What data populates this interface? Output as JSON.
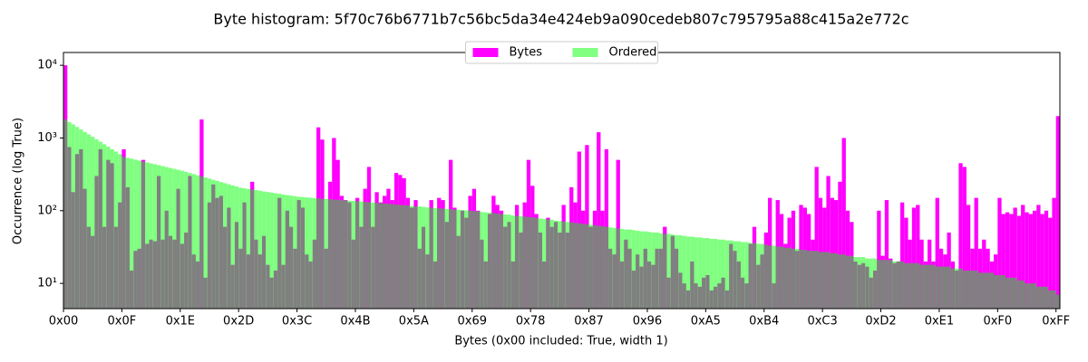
{
  "chart_data": {
    "type": "histogram",
    "title": "Byte histogram: 5f70c76b6771b7c56bc5da34e424eb9a090cedeb807c795795a88c415a2e772c",
    "xlabel": "Bytes (0x00 included: True, width 1)",
    "ylabel": "Occurrence (log True)",
    "log_y": true,
    "legend": "upper center",
    "overlap_color": "#808080",
    "xlim": [
      0,
      256
    ],
    "ylim": [
      4.5,
      15000
    ],
    "xticks": [
      {
        "value": 0,
        "label": "0x00"
      },
      {
        "value": 15,
        "label": "0x0F"
      },
      {
        "value": 30,
        "label": "0x1E"
      },
      {
        "value": 45,
        "label": "0x2D"
      },
      {
        "value": 60,
        "label": "0x3C"
      },
      {
        "value": 75,
        "label": "0x4B"
      },
      {
        "value": 90,
        "label": "0x5A"
      },
      {
        "value": 105,
        "label": "0x69"
      },
      {
        "value": 120,
        "label": "0x78"
      },
      {
        "value": 135,
        "label": "0x87"
      },
      {
        "value": 150,
        "label": "0x96"
      },
      {
        "value": 165,
        "label": "0xA5"
      },
      {
        "value": 180,
        "label": "0xB4"
      },
      {
        "value": 195,
        "label": "0xC3"
      },
      {
        "value": 210,
        "label": "0xD2"
      },
      {
        "value": 225,
        "label": "0xE1"
      },
      {
        "value": 240,
        "label": "0xF0"
      },
      {
        "value": 255,
        "label": "0xFF"
      }
    ],
    "yticks": [
      {
        "value": 10,
        "label": "10¹"
      },
      {
        "value": 100,
        "label": "10²"
      },
      {
        "value": 1000,
        "label": "10³"
      },
      {
        "value": 10000,
        "label": "10⁴"
      }
    ],
    "bins": [
      0,
      1,
      2,
      3,
      4,
      5,
      6,
      7,
      8,
      9,
      10,
      11,
      12,
      13,
      14,
      15,
      16,
      17,
      18,
      19,
      20,
      21,
      22,
      23,
      24,
      25,
      26,
      27,
      28,
      29,
      30,
      31,
      32,
      33,
      34,
      35,
      36,
      37,
      38,
      39,
      40,
      41,
      42,
      43,
      44,
      45,
      46,
      47,
      48,
      49,
      50,
      51,
      52,
      53,
      54,
      55,
      56,
      57,
      58,
      59,
      60,
      61,
      62,
      63,
      64,
      65,
      66,
      67,
      68,
      69,
      70,
      71,
      72,
      73,
      74,
      75,
      76,
      77,
      78,
      79,
      80,
      81,
      82,
      83,
      84,
      85,
      86,
      87,
      88,
      89,
      90,
      91,
      92,
      93,
      94,
      95,
      96,
      97,
      98,
      99,
      100,
      101,
      102,
      103,
      104,
      105,
      106,
      107,
      108,
      109,
      110,
      111,
      112,
      113,
      114,
      115,
      116,
      117,
      118,
      119,
      120,
      121,
      122,
      123,
      124,
      125,
      126,
      127,
      128,
      129,
      130,
      131,
      132,
      133,
      134,
      135,
      136,
      137,
      138,
      139,
      140,
      141,
      142,
      143,
      144,
      145,
      146,
      147,
      148,
      149,
      150,
      151,
      152,
      153,
      154,
      155,
      156,
      157,
      158,
      159,
      160,
      161,
      162,
      163,
      164,
      165,
      166,
      167,
      168,
      169,
      170,
      171,
      172,
      173,
      174,
      175,
      176,
      177,
      178,
      179,
      180,
      181,
      182,
      183,
      184,
      185,
      186,
      187,
      188,
      189,
      190,
      191,
      192,
      193,
      194,
      195,
      196,
      197,
      198,
      199,
      200,
      201,
      202,
      203,
      204,
      205,
      206,
      207,
      208,
      209,
      210,
      211,
      212,
      213,
      214,
      215,
      216,
      217,
      218,
      219,
      220,
      221,
      222,
      223,
      224,
      225,
      226,
      227,
      228,
      229,
      230,
      231,
      232,
      233,
      234,
      235,
      236,
      237,
      238,
      239,
      240,
      241,
      242,
      243,
      244,
      245,
      246,
      247,
      248,
      249,
      250,
      251,
      252,
      253,
      254,
      255,
      256
    ],
    "series": [
      {
        "name": "Bytes",
        "color": "#ff00ff",
        "values": [
          10000,
          750,
          180,
          600,
          700,
          200,
          60,
          45,
          300,
          700,
          60,
          500,
          450,
          60,
          130,
          700,
          210,
          15,
          28,
          30,
          500,
          35,
          40,
          38,
          300,
          40,
          100,
          45,
          40,
          200,
          35,
          50,
          300,
          25,
          20,
          1800,
          12,
          130,
          230,
          150,
          160,
          60,
          110,
          18,
          70,
          30,
          130,
          25,
          250,
          40,
          25,
          45,
          18,
          12,
          15,
          150,
          18,
          100,
          60,
          30,
          140,
          110,
          25,
          20,
          40,
          1400,
          950,
          30,
          250,
          1000,
          500,
          160,
          140,
          130,
          40,
          150,
          60,
          200,
          400,
          60,
          180,
          130,
          160,
          200,
          140,
          330,
          310,
          280,
          150,
          110,
          140,
          30,
          60,
          25,
          140,
          20,
          150,
          140,
          70,
          500,
          110,
          45,
          100,
          80,
          160,
          200,
          100,
          40,
          20,
          90,
          160,
          120,
          100,
          60,
          70,
          20,
          120,
          50,
          130,
          500,
          220,
          90,
          50,
          20,
          80,
          60,
          70,
          50,
          120,
          50,
          210,
          130,
          650,
          100,
          800,
          60,
          100,
          1200,
          100,
          700,
          30,
          25,
          500,
          20,
          40,
          30,
          15,
          25,
          17,
          30,
          20,
          18,
          30,
          30,
          60,
          12,
          45,
          30,
          14,
          10,
          8,
          20,
          10,
          9,
          12,
          13,
          8,
          9,
          10,
          12,
          8,
          35,
          28,
          20,
          12,
          10,
          35,
          60,
          18,
          25,
          50,
          150,
          10,
          140,
          90,
          35,
          80,
          100,
          28,
          120,
          110,
          90,
          40,
          400,
          150,
          110,
          300,
          150,
          140,
          250,
          1000,
          100,
          70,
          20,
          18,
          19,
          17,
          12,
          15,
          100,
          24,
          140,
          22,
          19,
          20,
          130,
          80,
          40,
          110,
          120,
          40,
          20,
          40,
          20,
          150,
          30,
          25,
          50,
          20,
          15,
          450,
          400,
          120,
          30,
          150,
          30,
          40,
          30,
          20,
          25,
          150,
          90,
          95,
          90,
          110,
          85,
          120,
          95,
          90,
          100,
          120,
          90,
          100,
          80,
          150,
          2000
        ]
      },
      {
        "name": "Ordered",
        "color": "#80ff80",
        "values": [
          1800,
          1660,
          1540,
          1420,
          1310,
          1210,
          1120,
          1040,
          960,
          890,
          820,
          760,
          700,
          650,
          600,
          550,
          534,
          519,
          504,
          489,
          475,
          461,
          448,
          435,
          423,
          411,
          399,
          387,
          376,
          365,
          355,
          342,
          330,
          319,
          307,
          297,
          286,
          276,
          266,
          257,
          248,
          239,
          231,
          223,
          215,
          207,
          203,
          199,
          195,
          192,
          188,
          184,
          181,
          177,
          174,
          171,
          167,
          164,
          161,
          158,
          155,
          154,
          152,
          151,
          149,
          148,
          146,
          145,
          144,
          142,
          141,
          140,
          138,
          137,
          136,
          135,
          134,
          132,
          131,
          129,
          128,
          127,
          125,
          124,
          123,
          121,
          120,
          119,
          118,
          116,
          115,
          114,
          113,
          111,
          110,
          109,
          108,
          107,
          106,
          105,
          104,
          103,
          102,
          101,
          100,
          99,
          98,
          96,
          95,
          94,
          93,
          91,
          90,
          89,
          88,
          86,
          85,
          84,
          83,
          82,
          81,
          80,
          78,
          77,
          76,
          75,
          73,
          72,
          71,
          70,
          69,
          68,
          67,
          66,
          65,
          64,
          63,
          62,
          61,
          60,
          59,
          58,
          57,
          56,
          55,
          55,
          54,
          53,
          52,
          52,
          51,
          50,
          50,
          49,
          48,
          48,
          47,
          46,
          46,
          45,
          44,
          44,
          43,
          43,
          42,
          42,
          41,
          41,
          40,
          40,
          39,
          39,
          38,
          38,
          37,
          37,
          36,
          36,
          35,
          35,
          34,
          33,
          33,
          32,
          32,
          31,
          31,
          30,
          30,
          29,
          29,
          28,
          28,
          28,
          27,
          27,
          27,
          26,
          26,
          25,
          25,
          24,
          24,
          23,
          23,
          23,
          22,
          22,
          22,
          21,
          21,
          21,
          21,
          20,
          20,
          20,
          19,
          19,
          19,
          19,
          18,
          18,
          18,
          18,
          17,
          17,
          17,
          17,
          16,
          16,
          16,
          15,
          15,
          15,
          15,
          14,
          14,
          14,
          14,
          13,
          13,
          13,
          12,
          12,
          12,
          11,
          11,
          10,
          10,
          10,
          9,
          9,
          9,
          8,
          8,
          7
        ]
      }
    ]
  }
}
